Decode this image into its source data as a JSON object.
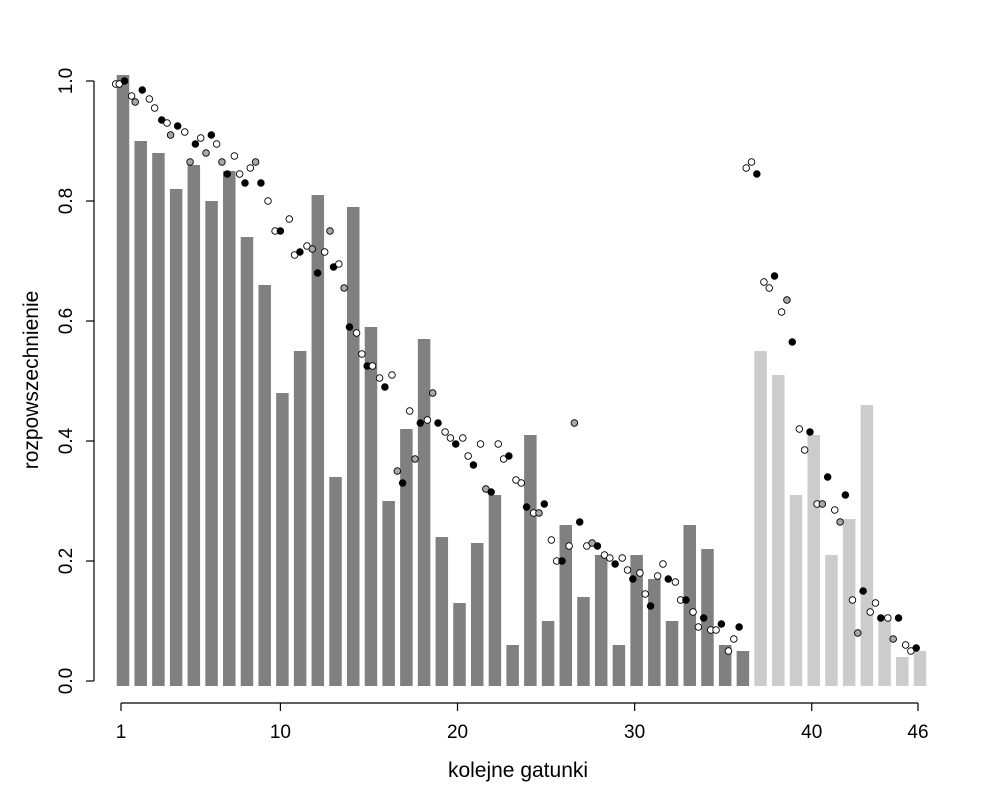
{
  "chart_data": {
    "type": "bar",
    "xlabel": "kolejne gatunki",
    "ylabel": "rozpowszechnienie",
    "xlim": [
      1,
      46
    ],
    "ylim": [
      0,
      1
    ],
    "x_ticks": [
      1,
      10,
      20,
      30,
      40,
      46
    ],
    "y_ticks": [
      0.0,
      0.2,
      0.4,
      0.6,
      0.8,
      1.0
    ],
    "y_tick_labels": [
      "0.0",
      "0.2",
      "0.4",
      "0.6",
      "0.8",
      "1.0"
    ],
    "grid": false,
    "colors": {
      "bar_dark": "#808080",
      "bar_light": "#cccccc",
      "point_black": "#000000",
      "point_white": "#ffffff",
      "point_gray": "#a8a8a8"
    },
    "bars": [
      {
        "x": 1,
        "value": 1.01,
        "shade": "dark"
      },
      {
        "x": 2,
        "value": 0.9,
        "shade": "dark"
      },
      {
        "x": 3,
        "value": 0.88,
        "shade": "dark"
      },
      {
        "x": 4,
        "value": 0.82,
        "shade": "dark"
      },
      {
        "x": 5,
        "value": 0.86,
        "shade": "dark"
      },
      {
        "x": 6,
        "value": 0.8,
        "shade": "dark"
      },
      {
        "x": 7,
        "value": 0.85,
        "shade": "dark"
      },
      {
        "x": 8,
        "value": 0.74,
        "shade": "dark"
      },
      {
        "x": 9,
        "value": 0.66,
        "shade": "dark"
      },
      {
        "x": 10,
        "value": 0.48,
        "shade": "dark"
      },
      {
        "x": 11,
        "value": 0.55,
        "shade": "dark"
      },
      {
        "x": 12,
        "value": 0.81,
        "shade": "dark"
      },
      {
        "x": 13,
        "value": 0.34,
        "shade": "dark"
      },
      {
        "x": 14,
        "value": 0.79,
        "shade": "dark"
      },
      {
        "x": 15,
        "value": 0.59,
        "shade": "dark"
      },
      {
        "x": 16,
        "value": 0.3,
        "shade": "dark"
      },
      {
        "x": 17,
        "value": 0.42,
        "shade": "dark"
      },
      {
        "x": 18,
        "value": 0.57,
        "shade": "dark"
      },
      {
        "x": 19,
        "value": 0.24,
        "shade": "dark"
      },
      {
        "x": 20,
        "value": 0.13,
        "shade": "dark"
      },
      {
        "x": 21,
        "value": 0.23,
        "shade": "dark"
      },
      {
        "x": 22,
        "value": 0.31,
        "shade": "dark"
      },
      {
        "x": 23,
        "value": 0.06,
        "shade": "dark"
      },
      {
        "x": 24,
        "value": 0.41,
        "shade": "dark"
      },
      {
        "x": 25,
        "value": 0.1,
        "shade": "dark"
      },
      {
        "x": 26,
        "value": 0.26,
        "shade": "dark"
      },
      {
        "x": 27,
        "value": 0.14,
        "shade": "dark"
      },
      {
        "x": 28,
        "value": 0.21,
        "shade": "dark"
      },
      {
        "x": 29,
        "value": 0.06,
        "shade": "dark"
      },
      {
        "x": 30,
        "value": 0.21,
        "shade": "dark"
      },
      {
        "x": 31,
        "value": 0.17,
        "shade": "dark"
      },
      {
        "x": 32,
        "value": 0.1,
        "shade": "dark"
      },
      {
        "x": 33,
        "value": 0.26,
        "shade": "dark"
      },
      {
        "x": 34,
        "value": 0.22,
        "shade": "dark"
      },
      {
        "x": 35,
        "value": 0.06,
        "shade": "dark"
      },
      {
        "x": 36,
        "value": 0.05,
        "shade": "dark"
      },
      {
        "x": 37,
        "value": 0.55,
        "shade": "light"
      },
      {
        "x": 38,
        "value": 0.51,
        "shade": "light"
      },
      {
        "x": 39,
        "value": 0.31,
        "shade": "light"
      },
      {
        "x": 40,
        "value": 0.41,
        "shade": "light"
      },
      {
        "x": 41,
        "value": 0.21,
        "shade": "light"
      },
      {
        "x": 42,
        "value": 0.27,
        "shade": "light"
      },
      {
        "x": 43,
        "value": 0.46,
        "shade": "light"
      },
      {
        "x": 44,
        "value": 0.11,
        "shade": "light"
      },
      {
        "x": 45,
        "value": 0.04,
        "shade": "light"
      },
      {
        "x": 46,
        "value": 0.05,
        "shade": "light"
      }
    ],
    "points": [
      {
        "x": 0.7,
        "y": 0.995,
        "fill": "white"
      },
      {
        "x": 0.9,
        "y": 0.995,
        "fill": "white"
      },
      {
        "x": 1.2,
        "y": 1.0,
        "fill": "black"
      },
      {
        "x": 1.6,
        "y": 0.975,
        "fill": "white"
      },
      {
        "x": 1.8,
        "y": 0.965,
        "fill": "gray"
      },
      {
        "x": 2.2,
        "y": 0.985,
        "fill": "black"
      },
      {
        "x": 2.6,
        "y": 0.97,
        "fill": "white"
      },
      {
        "x": 2.9,
        "y": 0.955,
        "fill": "white"
      },
      {
        "x": 3.3,
        "y": 0.935,
        "fill": "black"
      },
      {
        "x": 3.6,
        "y": 0.93,
        "fill": "white"
      },
      {
        "x": 3.8,
        "y": 0.91,
        "fill": "gray"
      },
      {
        "x": 4.2,
        "y": 0.925,
        "fill": "black"
      },
      {
        "x": 4.6,
        "y": 0.915,
        "fill": "white"
      },
      {
        "x": 4.9,
        "y": 0.865,
        "fill": "gray"
      },
      {
        "x": 5.2,
        "y": 0.895,
        "fill": "black"
      },
      {
        "x": 5.5,
        "y": 0.905,
        "fill": "white"
      },
      {
        "x": 5.8,
        "y": 0.88,
        "fill": "gray"
      },
      {
        "x": 6.1,
        "y": 0.91,
        "fill": "black"
      },
      {
        "x": 6.4,
        "y": 0.895,
        "fill": "white"
      },
      {
        "x": 6.7,
        "y": 0.865,
        "fill": "gray"
      },
      {
        "x": 7.0,
        "y": 0.845,
        "fill": "black"
      },
      {
        "x": 7.4,
        "y": 0.875,
        "fill": "white"
      },
      {
        "x": 7.7,
        "y": 0.845,
        "fill": "white"
      },
      {
        "x": 8.0,
        "y": 0.83,
        "fill": "black"
      },
      {
        "x": 8.3,
        "y": 0.855,
        "fill": "white"
      },
      {
        "x": 8.6,
        "y": 0.865,
        "fill": "gray"
      },
      {
        "x": 8.9,
        "y": 0.83,
        "fill": "black"
      },
      {
        "x": 9.3,
        "y": 0.8,
        "fill": "white"
      },
      {
        "x": 9.7,
        "y": 0.75,
        "fill": "white"
      },
      {
        "x": 10.0,
        "y": 0.75,
        "fill": "black"
      },
      {
        "x": 10.5,
        "y": 0.77,
        "fill": "white"
      },
      {
        "x": 10.8,
        "y": 0.71,
        "fill": "white"
      },
      {
        "x": 11.1,
        "y": 0.715,
        "fill": "black"
      },
      {
        "x": 11.5,
        "y": 0.725,
        "fill": "white"
      },
      {
        "x": 11.8,
        "y": 0.72,
        "fill": "gray"
      },
      {
        "x": 12.1,
        "y": 0.68,
        "fill": "black"
      },
      {
        "x": 12.5,
        "y": 0.715,
        "fill": "white"
      },
      {
        "x": 12.8,
        "y": 0.75,
        "fill": "gray"
      },
      {
        "x": 13.0,
        "y": 0.69,
        "fill": "black"
      },
      {
        "x": 13.3,
        "y": 0.695,
        "fill": "white"
      },
      {
        "x": 13.6,
        "y": 0.655,
        "fill": "gray"
      },
      {
        "x": 13.9,
        "y": 0.59,
        "fill": "black"
      },
      {
        "x": 14.3,
        "y": 0.58,
        "fill": "white"
      },
      {
        "x": 14.6,
        "y": 0.545,
        "fill": "white"
      },
      {
        "x": 14.9,
        "y": 0.525,
        "fill": "black"
      },
      {
        "x": 15.2,
        "y": 0.525,
        "fill": "white"
      },
      {
        "x": 15.6,
        "y": 0.505,
        "fill": "white"
      },
      {
        "x": 15.9,
        "y": 0.49,
        "fill": "black"
      },
      {
        "x": 16.3,
        "y": 0.51,
        "fill": "white"
      },
      {
        "x": 16.6,
        "y": 0.35,
        "fill": "gray"
      },
      {
        "x": 16.9,
        "y": 0.33,
        "fill": "black"
      },
      {
        "x": 17.3,
        "y": 0.45,
        "fill": "white"
      },
      {
        "x": 17.6,
        "y": 0.37,
        "fill": "gray"
      },
      {
        "x": 17.9,
        "y": 0.43,
        "fill": "black"
      },
      {
        "x": 18.3,
        "y": 0.435,
        "fill": "white"
      },
      {
        "x": 18.6,
        "y": 0.48,
        "fill": "gray"
      },
      {
        "x": 18.9,
        "y": 0.43,
        "fill": "black"
      },
      {
        "x": 19.3,
        "y": 0.415,
        "fill": "white"
      },
      {
        "x": 19.6,
        "y": 0.405,
        "fill": "white"
      },
      {
        "x": 19.9,
        "y": 0.395,
        "fill": "black"
      },
      {
        "x": 20.3,
        "y": 0.405,
        "fill": "white"
      },
      {
        "x": 20.6,
        "y": 0.375,
        "fill": "white"
      },
      {
        "x": 20.9,
        "y": 0.36,
        "fill": "black"
      },
      {
        "x": 21.3,
        "y": 0.395,
        "fill": "white"
      },
      {
        "x": 21.6,
        "y": 0.32,
        "fill": "gray"
      },
      {
        "x": 21.9,
        "y": 0.315,
        "fill": "black"
      },
      {
        "x": 22.3,
        "y": 0.395,
        "fill": "white"
      },
      {
        "x": 22.6,
        "y": 0.37,
        "fill": "white"
      },
      {
        "x": 22.9,
        "y": 0.375,
        "fill": "black"
      },
      {
        "x": 23.3,
        "y": 0.335,
        "fill": "white"
      },
      {
        "x": 23.6,
        "y": 0.33,
        "fill": "white"
      },
      {
        "x": 23.9,
        "y": 0.29,
        "fill": "black"
      },
      {
        "x": 24.3,
        "y": 0.28,
        "fill": "white"
      },
      {
        "x": 24.6,
        "y": 0.28,
        "fill": "gray"
      },
      {
        "x": 24.9,
        "y": 0.295,
        "fill": "black"
      },
      {
        "x": 25.3,
        "y": 0.235,
        "fill": "white"
      },
      {
        "x": 25.6,
        "y": 0.2,
        "fill": "white"
      },
      {
        "x": 25.9,
        "y": 0.2,
        "fill": "black"
      },
      {
        "x": 26.3,
        "y": 0.225,
        "fill": "white"
      },
      {
        "x": 26.6,
        "y": 0.43,
        "fill": "gray"
      },
      {
        "x": 26.9,
        "y": 0.265,
        "fill": "black"
      },
      {
        "x": 27.3,
        "y": 0.225,
        "fill": "white"
      },
      {
        "x": 27.6,
        "y": 0.23,
        "fill": "gray"
      },
      {
        "x": 27.9,
        "y": 0.225,
        "fill": "black"
      },
      {
        "x": 28.3,
        "y": 0.21,
        "fill": "white"
      },
      {
        "x": 28.6,
        "y": 0.205,
        "fill": "white"
      },
      {
        "x": 28.9,
        "y": 0.195,
        "fill": "black"
      },
      {
        "x": 29.3,
        "y": 0.205,
        "fill": "white"
      },
      {
        "x": 29.6,
        "y": 0.185,
        "fill": "white"
      },
      {
        "x": 29.9,
        "y": 0.17,
        "fill": "black"
      },
      {
        "x": 30.3,
        "y": 0.18,
        "fill": "white"
      },
      {
        "x": 30.6,
        "y": 0.145,
        "fill": "white"
      },
      {
        "x": 30.9,
        "y": 0.125,
        "fill": "black"
      },
      {
        "x": 31.3,
        "y": 0.175,
        "fill": "white"
      },
      {
        "x": 31.6,
        "y": 0.195,
        "fill": "white"
      },
      {
        "x": 31.9,
        "y": 0.17,
        "fill": "black"
      },
      {
        "x": 32.3,
        "y": 0.165,
        "fill": "white"
      },
      {
        "x": 32.6,
        "y": 0.135,
        "fill": "white"
      },
      {
        "x": 32.9,
        "y": 0.135,
        "fill": "black"
      },
      {
        "x": 33.3,
        "y": 0.115,
        "fill": "white"
      },
      {
        "x": 33.6,
        "y": 0.09,
        "fill": "white"
      },
      {
        "x": 33.9,
        "y": 0.105,
        "fill": "black"
      },
      {
        "x": 34.3,
        "y": 0.085,
        "fill": "white"
      },
      {
        "x": 34.6,
        "y": 0.085,
        "fill": "white"
      },
      {
        "x": 34.9,
        "y": 0.095,
        "fill": "black"
      },
      {
        "x": 35.3,
        "y": 0.05,
        "fill": "white"
      },
      {
        "x": 35.6,
        "y": 0.07,
        "fill": "white"
      },
      {
        "x": 35.9,
        "y": 0.09,
        "fill": "black"
      },
      {
        "x": 36.3,
        "y": 0.855,
        "fill": "white"
      },
      {
        "x": 36.6,
        "y": 0.865,
        "fill": "white"
      },
      {
        "x": 36.9,
        "y": 0.845,
        "fill": "black"
      },
      {
        "x": 37.3,
        "y": 0.665,
        "fill": "white"
      },
      {
        "x": 37.6,
        "y": 0.655,
        "fill": "white"
      },
      {
        "x": 37.9,
        "y": 0.675,
        "fill": "black"
      },
      {
        "x": 38.3,
        "y": 0.615,
        "fill": "white"
      },
      {
        "x": 38.6,
        "y": 0.635,
        "fill": "gray"
      },
      {
        "x": 38.9,
        "y": 0.565,
        "fill": "black"
      },
      {
        "x": 39.3,
        "y": 0.42,
        "fill": "white"
      },
      {
        "x": 39.6,
        "y": 0.385,
        "fill": "white"
      },
      {
        "x": 39.9,
        "y": 0.415,
        "fill": "black"
      },
      {
        "x": 40.3,
        "y": 0.295,
        "fill": "white"
      },
      {
        "x": 40.6,
        "y": 0.295,
        "fill": "gray"
      },
      {
        "x": 40.9,
        "y": 0.34,
        "fill": "black"
      },
      {
        "x": 41.3,
        "y": 0.285,
        "fill": "white"
      },
      {
        "x": 41.6,
        "y": 0.265,
        "fill": "gray"
      },
      {
        "x": 41.9,
        "y": 0.31,
        "fill": "black"
      },
      {
        "x": 42.3,
        "y": 0.135,
        "fill": "white"
      },
      {
        "x": 42.6,
        "y": 0.08,
        "fill": "gray"
      },
      {
        "x": 42.9,
        "y": 0.15,
        "fill": "black"
      },
      {
        "x": 43.3,
        "y": 0.115,
        "fill": "white"
      },
      {
        "x": 43.6,
        "y": 0.13,
        "fill": "white"
      },
      {
        "x": 43.9,
        "y": 0.105,
        "fill": "black"
      },
      {
        "x": 44.3,
        "y": 0.105,
        "fill": "white"
      },
      {
        "x": 44.6,
        "y": 0.07,
        "fill": "gray"
      },
      {
        "x": 44.9,
        "y": 0.105,
        "fill": "black"
      },
      {
        "x": 45.3,
        "y": 0.06,
        "fill": "white"
      },
      {
        "x": 45.6,
        "y": 0.05,
        "fill": "white"
      },
      {
        "x": 45.9,
        "y": 0.055,
        "fill": "black"
      }
    ]
  }
}
